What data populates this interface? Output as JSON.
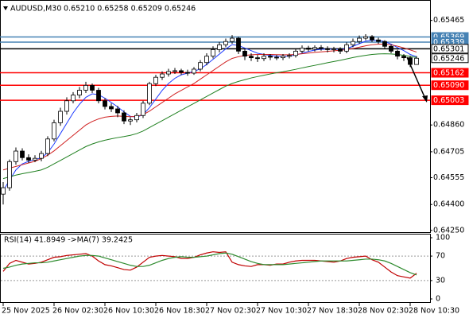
{
  "chart_data": [
    {
      "type": "candlestick",
      "title": "AUDUSD,M30",
      "subtitle": "0.65210 0.65258 0.65209 0.65246",
      "categories": [
        "25 Nov 2025",
        null,
        null,
        null,
        null,
        null,
        null,
        null,
        "26 Nov 02:30",
        null,
        null,
        null,
        null,
        null,
        null,
        null,
        "26 Nov 10:30",
        null,
        null,
        null,
        null,
        null,
        null,
        null,
        "26 Nov 18:30",
        null,
        null,
        null,
        null,
        null,
        null,
        null,
        "27 Nov 02:30",
        null,
        null,
        null,
        null,
        null,
        null,
        null,
        "27 Nov 10:30",
        null,
        null,
        null,
        null,
        null,
        null,
        null,
        "27 Nov 18:30",
        null,
        null,
        null,
        null,
        null,
        null,
        null,
        "28 Nov 02:30",
        null,
        null,
        null,
        null,
        null,
        null,
        null,
        "28 Nov 10:30",
        null
      ],
      "open": [
        0.6446,
        0.64497,
        0.64648,
        0.64709,
        0.64671,
        0.64657,
        0.64667,
        0.64695,
        0.64779,
        0.64873,
        0.64939,
        0.65,
        0.65033,
        0.65061,
        0.65089,
        0.65061,
        0.65,
        0.64967,
        0.64953,
        0.6493,
        0.64883,
        0.6489,
        0.64915,
        0.64986,
        0.65099,
        0.65136,
        0.65155,
        0.65169,
        0.65174,
        0.65164,
        0.6516,
        0.65183,
        0.65221,
        0.65258,
        0.65296,
        0.65324,
        0.65343,
        0.65362,
        0.65287,
        0.65258,
        0.65249,
        0.65244,
        0.65258,
        0.65252,
        0.65249,
        0.65258,
        0.65262,
        0.65287,
        0.65305,
        0.65298,
        0.65308,
        0.65302,
        0.65296,
        0.653,
        0.65287,
        0.65324,
        0.65343,
        0.65362,
        0.65371,
        0.65352,
        0.65343,
        0.65315,
        0.65287,
        0.65258,
        0.65249,
        0.6521
      ],
      "high": [
        0.6453,
        0.6466,
        0.6473,
        0.64725,
        0.6469,
        0.64685,
        0.6471,
        0.64795,
        0.6489,
        0.6496,
        0.6502,
        0.6505,
        0.6508,
        0.6511,
        0.651,
        0.65075,
        0.65015,
        0.64985,
        0.6497,
        0.64945,
        0.64905,
        0.6493,
        0.65,
        0.6511,
        0.6515,
        0.6517,
        0.65185,
        0.6519,
        0.65185,
        0.6518,
        0.65195,
        0.65235,
        0.65275,
        0.65315,
        0.6534,
        0.6536,
        0.6538,
        0.6537,
        0.653,
        0.65275,
        0.65265,
        0.65275,
        0.6527,
        0.65265,
        0.6527,
        0.65275,
        0.653,
        0.6532,
        0.65318,
        0.6532,
        0.65322,
        0.65315,
        0.65312,
        0.6531,
        0.65338,
        0.6536,
        0.65378,
        0.65385,
        0.6538,
        0.65365,
        0.6535,
        0.65325,
        0.65295,
        0.6527,
        0.6526,
        0.65258
      ],
      "low": [
        0.644,
        0.6448,
        0.6463,
        0.64655,
        0.6464,
        0.64645,
        0.6465,
        0.6468,
        0.64765,
        0.64855,
        0.6492,
        0.64985,
        0.65015,
        0.65045,
        0.65045,
        0.64985,
        0.6495,
        0.64935,
        0.64905,
        0.64865,
        0.6486,
        0.64875,
        0.649,
        0.64975,
        0.65085,
        0.6512,
        0.6514,
        0.65155,
        0.6515,
        0.65145,
        0.6515,
        0.6517,
        0.65205,
        0.65245,
        0.6528,
        0.6531,
        0.6533,
        0.6527,
        0.65235,
        0.6523,
        0.65225,
        0.6523,
        0.65235,
        0.65235,
        0.65235,
        0.65245,
        0.6525,
        0.65275,
        0.65285,
        0.65285,
        0.6529,
        0.6528,
        0.6528,
        0.6527,
        0.65275,
        0.6531,
        0.6533,
        0.6535,
        0.6534,
        0.6533,
        0.653,
        0.65275,
        0.6524,
        0.6523,
        0.65195,
        0.65209
      ],
      "close": [
        0.64497,
        0.64648,
        0.64709,
        0.64671,
        0.64657,
        0.64667,
        0.64695,
        0.64779,
        0.64873,
        0.64939,
        0.65,
        0.65033,
        0.65061,
        0.65089,
        0.65061,
        0.65,
        0.64967,
        0.64953,
        0.6493,
        0.64883,
        0.6489,
        0.64915,
        0.64986,
        0.65099,
        0.65136,
        0.65155,
        0.65169,
        0.65174,
        0.65164,
        0.6516,
        0.65183,
        0.65221,
        0.65258,
        0.65296,
        0.65324,
        0.65343,
        0.65362,
        0.65287,
        0.65258,
        0.65249,
        0.65244,
        0.65258,
        0.65252,
        0.65249,
        0.65258,
        0.65262,
        0.65287,
        0.65305,
        0.65298,
        0.65308,
        0.65302,
        0.65296,
        0.653,
        0.65287,
        0.65324,
        0.65343,
        0.65362,
        0.65371,
        0.65352,
        0.65343,
        0.65315,
        0.65287,
        0.65258,
        0.65249,
        0.6521,
        0.65246
      ],
      "up_color": "#ffffff",
      "down_color": "#000000",
      "series": [
        {
          "color": "#1e3cff",
          "values": [
            0.6448,
            0.6454,
            0.646,
            0.64635,
            0.6465,
            0.6466,
            0.6467,
            0.647,
            0.6475,
            0.6481,
            0.6487,
            0.6493,
            0.6498,
            0.6502,
            0.6504,
            0.65035,
            0.65015,
            0.6499,
            0.64965,
            0.64935,
            0.6491,
            0.64905,
            0.6492,
            0.6496,
            0.6501,
            0.6506,
            0.651,
            0.6513,
            0.6515,
            0.6516,
            0.6517,
            0.65185,
            0.6521,
            0.6524,
            0.6527,
            0.653,
            0.65325,
            0.6532,
            0.65305,
            0.6529,
            0.65275,
            0.65268,
            0.65262,
            0.65258,
            0.65257,
            0.65258,
            0.65265,
            0.65275,
            0.65285,
            0.65293,
            0.65298,
            0.65299,
            0.65299,
            0.65297,
            0.65302,
            0.65315,
            0.6533,
            0.65345,
            0.6535,
            0.6535,
            0.65342,
            0.65328,
            0.65308,
            0.6529,
            0.65268,
            0.65255
          ]
        },
        {
          "color": "#d02020",
          "values": [
            0.646,
            0.6461,
            0.6462,
            0.6463,
            0.6464,
            0.6465,
            0.64665,
            0.64685,
            0.6471,
            0.6474,
            0.6477,
            0.648,
            0.6483,
            0.6486,
            0.6488,
            0.64895,
            0.64905,
            0.6491,
            0.64912,
            0.6491,
            0.64908,
            0.6491,
            0.6492,
            0.6494,
            0.64965,
            0.6499,
            0.65015,
            0.6504,
            0.6506,
            0.6508,
            0.651,
            0.65125,
            0.6515,
            0.65175,
            0.652,
            0.65225,
            0.65245,
            0.65255,
            0.65262,
            0.65266,
            0.65268,
            0.65268,
            0.65268,
            0.65267,
            0.65266,
            0.65266,
            0.65268,
            0.65272,
            0.65276,
            0.6528,
            0.65283,
            0.65286,
            0.65289,
            0.65292,
            0.65296,
            0.65302,
            0.6531,
            0.65318,
            0.65324,
            0.65328,
            0.65328,
            0.65324,
            0.65316,
            0.65306,
            0.65294,
            0.65282
          ]
        },
        {
          "color": "#208020",
          "values": [
            0.6455,
            0.6456,
            0.6457,
            0.64578,
            0.64585,
            0.64592,
            0.646,
            0.64615,
            0.64635,
            0.64655,
            0.64675,
            0.64695,
            0.64715,
            0.64735,
            0.6475,
            0.64762,
            0.64772,
            0.6478,
            0.64787,
            0.64793,
            0.648,
            0.6481,
            0.64825,
            0.64845,
            0.64865,
            0.64885,
            0.64905,
            0.64925,
            0.64945,
            0.64965,
            0.64985,
            0.65005,
            0.65025,
            0.65045,
            0.65065,
            0.65085,
            0.651,
            0.65112,
            0.65122,
            0.65132,
            0.6514,
            0.65148,
            0.65155,
            0.65162,
            0.65168,
            0.65175,
            0.65182,
            0.6519,
            0.65198,
            0.65205,
            0.65212,
            0.6522,
            0.65227,
            0.65234,
            0.65242,
            0.6525,
            0.65257,
            0.65263,
            0.65268,
            0.65271,
            0.65272,
            0.65271,
            0.65268,
            0.65263,
            0.65257,
            0.6525
          ]
        }
      ],
      "levels": [
        {
          "value": 0.65369,
          "color": "#4682b4"
        },
        {
          "value": 0.65339,
          "color": "#4682b4"
        },
        {
          "value": 0.65301,
          "color": "#000000"
        },
        {
          "value": 0.65162,
          "color": "#ff0000"
        },
        {
          "value": 0.6509,
          "label": "0.65090",
          "color": "#ff0000"
        },
        {
          "value": 0.65003,
          "color": "#ff0000"
        }
      ],
      "ylim": [
        0.6424,
        0.6556
      ],
      "yticks": [
        0.65465,
        {
          "value": 0.6486,
          "label": "0.64860"
        },
        0.64705,
        0.64555,
        {
          "value": 0.644,
          "label": "0.64400"
        },
        {
          "value": 0.6425,
          "label": "0.64250"
        }
      ]
    },
    {
      "type": "line",
      "title": "RSI(14) 41.8949 ->MA(7) 39.2425",
      "series": [
        {
          "color": "#c00000",
          "values": [
            45,
            58,
            63,
            60,
            57,
            58,
            60,
            64,
            68,
            69,
            71,
            72,
            73,
            74,
            70,
            62,
            56,
            54,
            51,
            48,
            47,
            52,
            60,
            68,
            70,
            71,
            70,
            69,
            66,
            66,
            68,
            72,
            75,
            77,
            76,
            77,
            60,
            56,
            54,
            53,
            56,
            56,
            55,
            57,
            57,
            60,
            62,
            63,
            63,
            63,
            62,
            61,
            60,
            62,
            66,
            68,
            69,
            70,
            64,
            60,
            52,
            44,
            38,
            36,
            34,
            41.8949
          ]
        },
        {
          "color": "#2e8b2e",
          "values": [
            50,
            52,
            55,
            57,
            58,
            59,
            59,
            60,
            62,
            64,
            66,
            68,
            70,
            71,
            71,
            70,
            67,
            64,
            61,
            58,
            55,
            53,
            53,
            55,
            59,
            63,
            66,
            68,
            69,
            68,
            68,
            69,
            70,
            72,
            74,
            75,
            73,
            69,
            65,
            61,
            58,
            56,
            56,
            56,
            56,
            57,
            58,
            59,
            60,
            61,
            62,
            62,
            62,
            62,
            62,
            63,
            64,
            65,
            65,
            64,
            62,
            58,
            53,
            48,
            43,
            39.2425
          ]
        }
      ],
      "ylim": [
        0,
        100
      ],
      "yticks": [
        0,
        30,
        70,
        100
      ]
    }
  ]
}
